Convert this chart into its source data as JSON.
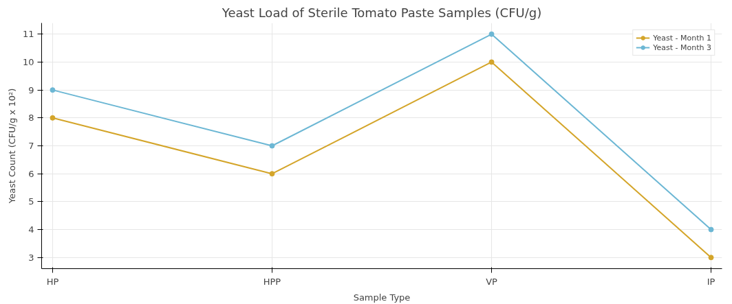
{
  "chart_data": {
    "type": "line",
    "title": "Yeast Load of Sterile Tomato Paste Samples (CFU/g)",
    "xlabel": "Sample Type",
    "ylabel": "Yeast Count (CFU/g x 10²)",
    "categories": [
      "HP",
      "HPP",
      "VP",
      "IP"
    ],
    "series": [
      {
        "name": "Yeast - Month 1",
        "color": "#d4a52a",
        "values": [
          8,
          6,
          10,
          3
        ]
      },
      {
        "name": "Yeast - Month 3",
        "color": "#6cb7d4",
        "values": [
          9,
          7,
          11,
          4
        ]
      }
    ],
    "ylim": [
      2.6,
      11.4
    ],
    "yticks": [
      3,
      4,
      5,
      6,
      7,
      8,
      9,
      10,
      11
    ],
    "grid": true,
    "legend": "top right",
    "marker": "circle",
    "line_style": "solid"
  }
}
